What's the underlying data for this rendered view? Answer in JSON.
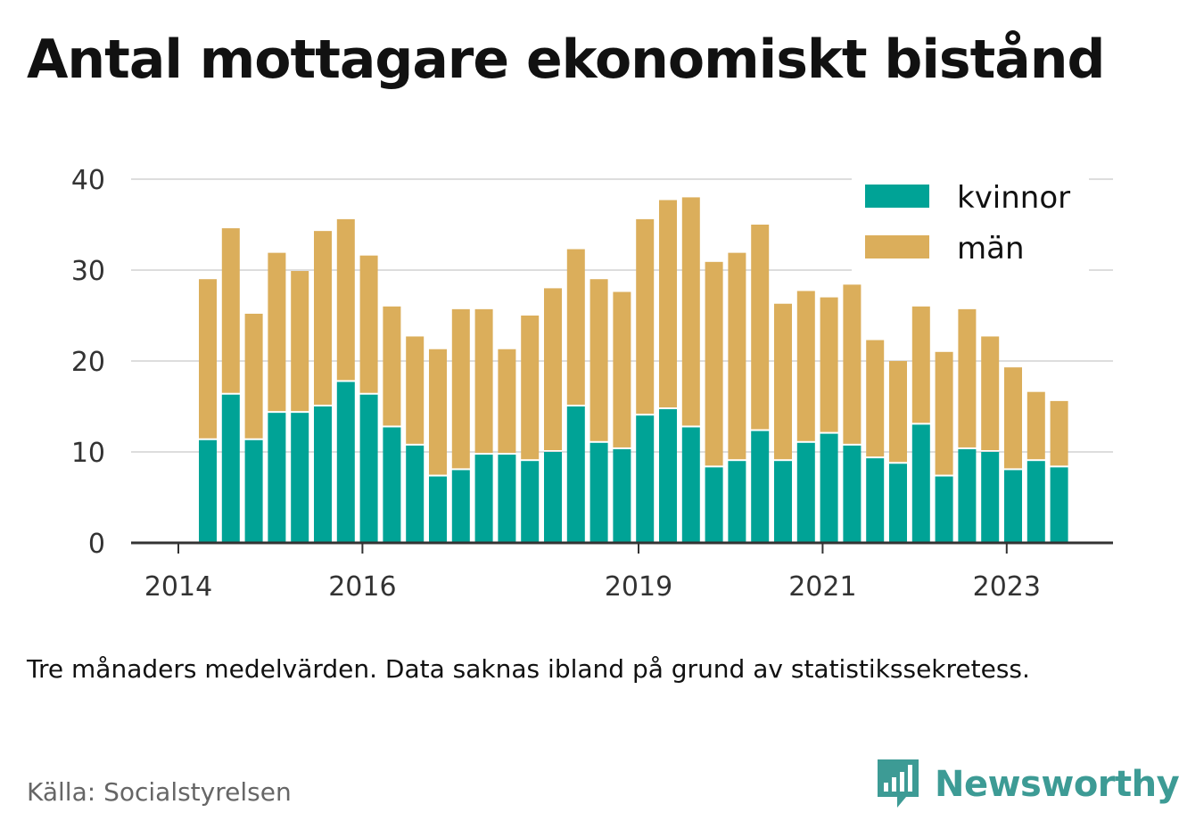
{
  "title": "Antal mottagare ekonomiskt bistånd",
  "note": "Tre månaders medelvärden. Data saknas ibland på grund av statistikssekretess.",
  "source": "Källa: Socialstyrelsen",
  "brand": {
    "name": "Newsworthy",
    "icon": "bar-chart-speech-bubble-icon",
    "color": "#3d9b95"
  },
  "colors": {
    "kvinnor": "#00a396",
    "man": "#dbae5b",
    "axis": "#333333",
    "grid": "#dddddd",
    "text": "#333333"
  },
  "chart_data": {
    "type": "bar",
    "stacked": true,
    "ylim": [
      0,
      40
    ],
    "yticks": [
      0,
      10,
      20,
      30,
      40
    ],
    "grid": true,
    "legend_position": "top-right",
    "x_start_year": 2014,
    "quarters_per_year": 4,
    "x_ticks": [
      "2014",
      "2016",
      "2019",
      "2021",
      "2023"
    ],
    "x_tick_positions": [
      2014,
      2016,
      2019,
      2021,
      2023
    ],
    "categories": [
      "2014 Q2",
      "2014 Q3",
      "2014 Q4",
      "2015 Q1",
      "2015 Q2",
      "2015 Q3",
      "2015 Q4",
      "2016 Q1",
      "2016 Q2",
      "2016 Q3",
      "2016 Q4",
      "2017 Q1",
      "2017 Q2",
      "2017 Q3",
      "2017 Q4",
      "2018 Q1",
      "2018 Q2",
      "2018 Q3",
      "2018 Q4",
      "2019 Q1",
      "2019 Q2",
      "2019 Q3",
      "2019 Q4",
      "2020 Q1",
      "2020 Q2",
      "2020 Q3",
      "2020 Q4",
      "2021 Q1",
      "2021 Q2",
      "2021 Q3",
      "2021 Q4",
      "2022 Q1",
      "2022 Q2",
      "2022 Q3",
      "2022 Q4",
      "2023 Q1",
      "2023 Q2",
      "2023 Q3"
    ],
    "series": [
      {
        "name": "kvinnor",
        "values": [
          11.3,
          16.3,
          11.3,
          14.3,
          14.3,
          15.0,
          17.7,
          16.3,
          12.7,
          10.7,
          7.3,
          8.0,
          9.7,
          9.7,
          9.0,
          10.0,
          15.0,
          11.0,
          10.3,
          14.0,
          14.7,
          12.7,
          8.3,
          9.0,
          12.3,
          9.0,
          11.0,
          12.0,
          10.7,
          9.3,
          8.7,
          13.0,
          7.3,
          10.3,
          10.0,
          8.0,
          9.0,
          8.3
        ]
      },
      {
        "name": "män",
        "values": [
          17.7,
          18.3,
          13.9,
          17.6,
          15.6,
          19.3,
          17.9,
          15.3,
          13.3,
          12.0,
          14.0,
          17.7,
          16.0,
          11.6,
          16.0,
          18.0,
          17.3,
          18.0,
          17.3,
          21.6,
          23.0,
          25.3,
          22.6,
          22.9,
          22.7,
          17.3,
          16.7,
          15.0,
          17.7,
          13.0,
          11.3,
          13.0,
          13.7,
          15.4,
          12.7,
          11.3,
          7.6,
          7.3
        ]
      }
    ]
  }
}
